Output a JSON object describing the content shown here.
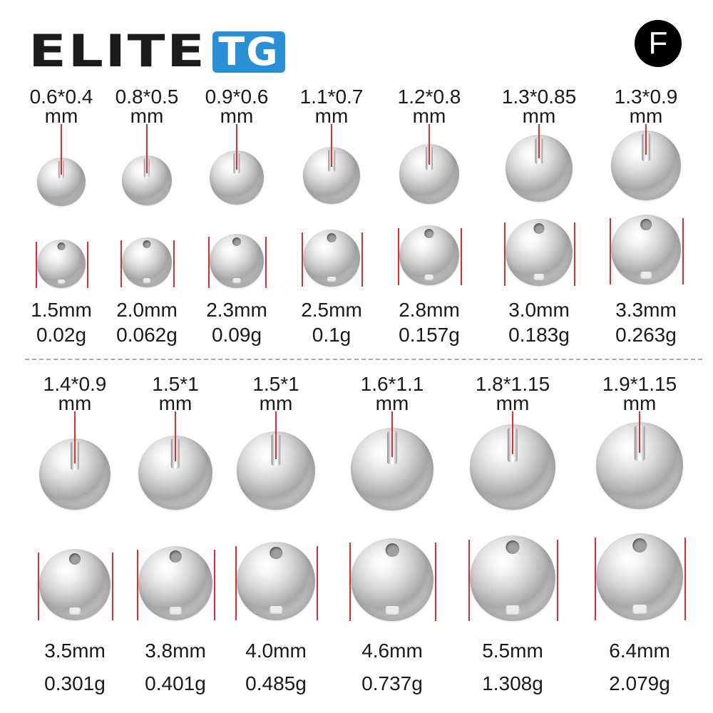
{
  "logo": {
    "brand_text": "ELITE",
    "brand_highlight": "TG"
  },
  "badge": {
    "letter": "F"
  },
  "unit": "mm",
  "top_row": [
    {
      "bore": "0.6*0.4",
      "unit": "mm",
      "size": "1.5mm",
      "weight": "0.02g"
    },
    {
      "bore": "0.8*0.5",
      "unit": "mm",
      "size": "2.0mm",
      "weight": "0.062g"
    },
    {
      "bore": "0.9*0.6",
      "unit": "mm",
      "size": "2.3mm",
      "weight": "0.09g"
    },
    {
      "bore": "1.1*0.7",
      "unit": "mm",
      "size": "2.5mm",
      "weight": "0.1g"
    },
    {
      "bore": "1.2*0.8",
      "unit": "mm",
      "size": "2.8mm",
      "weight": "0.157g"
    },
    {
      "bore": "1.3*0.85",
      "unit": "mm",
      "size": "3.0mm",
      "weight": "0.183g"
    },
    {
      "bore": "1.3*0.9",
      "unit": "mm",
      "size": "3.3mm",
      "weight": "0.263g"
    }
  ],
  "bottom_row": [
    {
      "bore": "1.4*0.9",
      "unit": "mm",
      "size": "3.5mm",
      "weight": "0.301g"
    },
    {
      "bore": "1.5*1",
      "unit": "mm",
      "size": "3.8mm",
      "weight": "0.401g"
    },
    {
      "bore": "1.5*1",
      "unit": "mm",
      "size": "4.0mm",
      "weight": "0.485g"
    },
    {
      "bore": "1.6*1.1",
      "unit": "mm",
      "size": "4.6mm",
      "weight": "0.737g"
    },
    {
      "bore": "1.8*1.15",
      "unit": "mm",
      "size": "5.5mm",
      "weight": "1.308g"
    },
    {
      "bore": "1.9*1.15",
      "unit": "mm",
      "size": "6.4mm",
      "weight": "2.079g"
    }
  ],
  "colors": {
    "logo_accent": "#2b8fd6",
    "marker_line": "#d83030",
    "divider": "#aaaaaa"
  }
}
